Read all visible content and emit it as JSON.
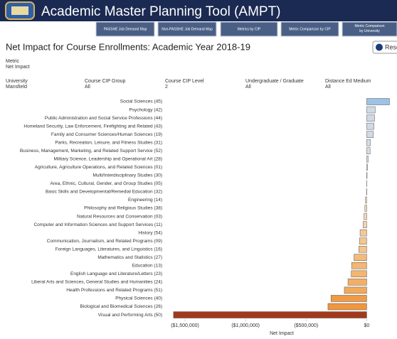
{
  "header": {
    "title": "Academic Master Planning Tool (AMPT)"
  },
  "nav": [
    "PASSHE Job Demand Map",
    "Non-PASSHE Job Demand Map",
    "Metrics by CIP",
    "Metric Comparison by CIP",
    "Metric Comparison by University"
  ],
  "reset": "Reset",
  "metric": {
    "label": "Metric",
    "value": "Net Impact"
  },
  "filters": [
    {
      "label": "University",
      "value": "Mansfield"
    },
    {
      "label": "Course CIP Group",
      "value": "All"
    },
    {
      "label": "Course CIP Level",
      "value": "2"
    },
    {
      "label": "Undergraduate / Graduate",
      "value": "All"
    },
    {
      "label": "Distance Ed Medium",
      "value": "All"
    }
  ],
  "chart_data": {
    "type": "hbar",
    "title": "Net Impact for Course Enrollments:  Academic Year 2018-19",
    "x_label": "Net Impact",
    "categories": [
      "Social Sciences (45)",
      "Psychology (42)",
      "Public Administration and Social Service Professions (44)",
      "Homeland Security, Law Enforcement, Firefighting and Related (43)",
      "Family and Consumer Sciences/Human Sciences (19)",
      "Parks, Recreation, Leisure, and Fitness Studies (31)",
      "Business, Management, Marketing, and Related Support Service (52)",
      "Military Science, Leadership and Operational Art (28)",
      "Agriculture, Agriculture Operations, and Related Sciences (01)",
      "Multi/Interdisciplinary Studies (30)",
      "Area, Ethnic, Cultural, Gender, and Group Studies (05)",
      "Basic Skills and Developmental/Remedial Education (32)",
      "Engineering (14)",
      "Philosophy and Religious Studies (38)",
      "Natural Resources and Conservation (03)",
      "Computer and Information Sciences and Support Services (11)",
      "History (54)",
      "Communication, Journalism, and Related Programs (09)",
      "Foreign Languages, Literatures, and Linguistics (16)",
      "Mathematics and Statistics (27)",
      "Education (13)",
      "English Language and Literature/Letters (23)",
      "Liberal Arts and Sciences, General Studies and Humanities (24)",
      "Health Professions and Related Programs (51)",
      "Physical Sciences (40)",
      "Biological and Biomedical Sciences (26)",
      "Visual and Performing Arts (50)"
    ],
    "values": [
      188000,
      70000,
      65000,
      60000,
      55000,
      30000,
      28000,
      12000,
      6000,
      3000,
      1000,
      -2000,
      -10000,
      -15000,
      -22000,
      -30000,
      -55000,
      -60000,
      -65000,
      -105000,
      -125000,
      -128000,
      -155000,
      -185000,
      -295000,
      -320000,
      -1595000
    ],
    "colors": [
      "#9cc3e6",
      "#d0dae4",
      "#d0dae4",
      "#d0dae4",
      "#d0dae4",
      "#d6dee6",
      "#d6dee6",
      "#dde3e9",
      "#e2e6ea",
      "#e5e8eb",
      "#e8eaec",
      "#f5e2cf",
      "#f6dcc2",
      "#f6d9bd",
      "#f6d6b6",
      "#f6d3b0",
      "#f5c894",
      "#f5c690",
      "#f5c48b",
      "#f4bb78",
      "#f4b670",
      "#f4b56e",
      "#f3af64",
      "#f2a95a",
      "#ef9a45",
      "#ee9640",
      "#a2391c"
    ],
    "xlim": [
      -1650000,
      250000
    ],
    "xticks": [
      {
        "value": -1500000,
        "label": "($1,500,000)"
      },
      {
        "value": -1000000,
        "label": "($1,000,000)"
      },
      {
        "value": -500000,
        "label": "($500,000)"
      },
      {
        "value": 0,
        "label": "$0"
      }
    ],
    "grid": false
  }
}
